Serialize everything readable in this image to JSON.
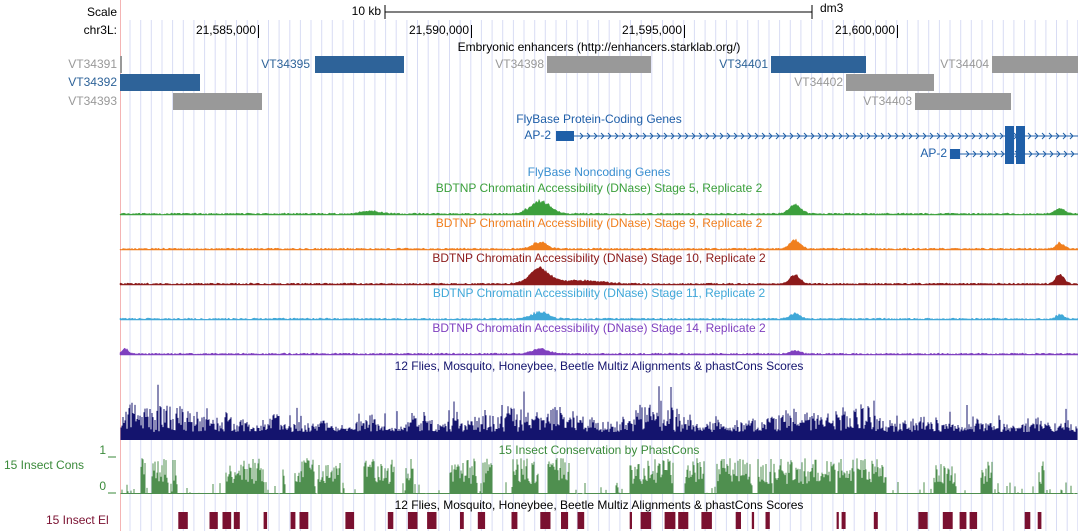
{
  "scale": {
    "label": "Scale",
    "span": "10 kb",
    "assembly": "dm3"
  },
  "position": {
    "chrom": "chr3L:",
    "ticks": [
      "21,585,000",
      "21,590,000",
      "21,595,000",
      "21,600,000"
    ]
  },
  "enhancers": {
    "title": "Embryonic enhancers (http://enhancers.starklab.org/)",
    "items": [
      "VT34391",
      "VT34392",
      "VT34393",
      "VT34395",
      "VT34398",
      "VT34401",
      "VT34402",
      "VT34403",
      "VT34404"
    ]
  },
  "protein_genes": {
    "title": "FlyBase Protein-Coding Genes",
    "genes": [
      "AP-2",
      "AP-2"
    ]
  },
  "noncoding_genes": {
    "title": "FlyBase Noncoding Genes"
  },
  "dnase": [
    "BDTNP Chromatin Accessibility (DNase) Stage 5, Replicate 2",
    "BDTNP Chromatin Accessibility (DNase) Stage 9, Replicate 2",
    "BDTNP Chromatin Accessibility (DNase) Stage 10, Replicate 2",
    "BDTNP Chromatin Accessibility (DNase) Stage 11, Replicate 2",
    "BDTNP Chromatin Accessibility (DNase) Stage 14, Replicate 2"
  ],
  "multiz": {
    "title": "12 Flies, Mosquito, Honeybee, Beetle Multiz Alignments & phastCons Scores"
  },
  "phastcons": {
    "title": "15 Insect Conservation by PhastCons",
    "label": "15 Insect Cons",
    "max": "1",
    "min": "0"
  },
  "elements": {
    "title": "12 Flies, Mosquito, Honeybee, Beetle Multiz Alignments & phastCons Scores",
    "label": "15 Insect El"
  }
}
